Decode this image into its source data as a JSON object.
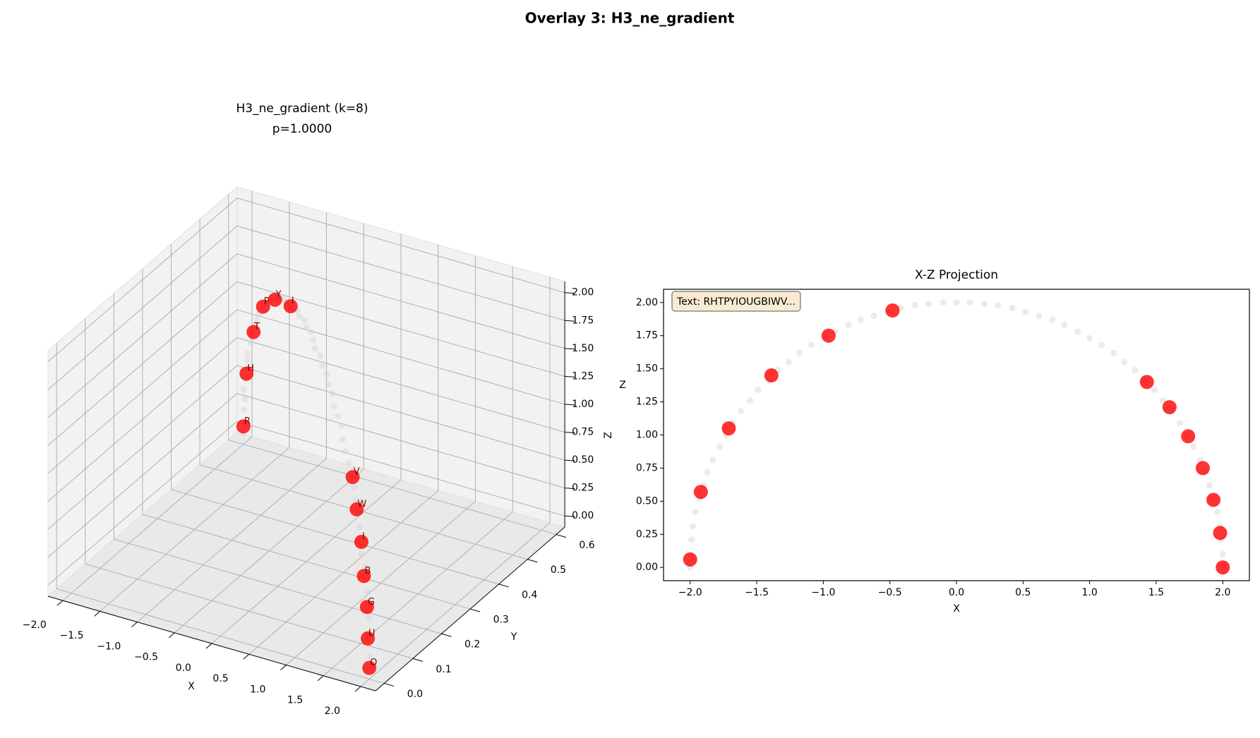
{
  "title": "Overlay 3: H3_ne_gradient",
  "chart_data": [
    {
      "type": "scatter3d",
      "title": [
        "H3_ne_gradient (k=8)",
        "p=1.0000"
      ],
      "xlabel": "X",
      "ylabel": "Y",
      "zlabel": "Z",
      "xlim": [
        -2.2,
        2.2
      ],
      "ylim": [
        -0.03,
        0.63
      ],
      "zlim": [
        -0.1,
        2.1
      ],
      "xticks": [
        {
          "value": -2,
          "label": "−2.0"
        },
        {
          "value": -1.5,
          "label": "−1.5"
        },
        {
          "value": -1,
          "label": "−1.0"
        },
        {
          "value": -0.5,
          "label": "−0.5"
        },
        {
          "value": 0,
          "label": "0.0"
        },
        0.5,
        {
          "value": 1,
          "label": "1.0"
        },
        1.5,
        {
          "value": 2,
          "label": "2.0"
        }
      ],
      "yticks": [
        {
          "value": 0,
          "label": "0.0"
        },
        0.1,
        0.2,
        0.3,
        0.4,
        0.5,
        0.6
      ],
      "zticks": [
        {
          "value": 0,
          "label": "0.00"
        },
        0.25,
        {
          "value": 0.5,
          "label": "0.50"
        },
        0.75,
        {
          "value": 1,
          "label": "1.00"
        },
        1.25,
        {
          "value": 1.5,
          "label": "1.50"
        },
        1.75,
        {
          "value": 2,
          "label": "2.00"
        }
      ],
      "grid": true,
      "series": [
        {
          "color": "#d3d3d3",
          "x": [
            2,
            2,
            1.99,
            1.98,
            1.96,
            1.93,
            1.9,
            1.87,
            1.83,
            1.78,
            1.73,
            1.68,
            1.62,
            1.55,
            1.49,
            1.41,
            1.34,
            1.26,
            1.18,
            1.09,
            1,
            0.91,
            0.81,
            0.72,
            0.62,
            0.52,
            0.42,
            0.31,
            0.21,
            0.1,
            0,
            -0.1,
            -0.21,
            -0.31,
            -0.42,
            -0.52,
            -0.62,
            -0.72,
            -0.81,
            -0.91,
            -1,
            -1.09,
            -1.18,
            -1.26,
            -1.34,
            -1.41,
            -1.49,
            -1.55,
            -1.62,
            -1.68,
            -1.73,
            -1.78,
            -1.83,
            -1.87,
            -1.9,
            -1.93,
            -1.96,
            -1.98,
            -1.99,
            -2,
            -2
          ],
          "y": [
            0,
            0,
            0,
            0,
            0.01,
            0.01,
            0.02,
            0.02,
            0.03,
            0.03,
            0.04,
            0.05,
            0.06,
            0.07,
            0.08,
            0.09,
            0.1,
            0.11,
            0.12,
            0.14,
            0.15,
            0.16,
            0.18,
            0.19,
            0.21,
            0.22,
            0.24,
            0.25,
            0.27,
            0.29,
            0.3,
            0.32,
            0.33,
            0.35,
            0.36,
            0.38,
            0.39,
            0.41,
            0.42,
            0.44,
            0.45,
            0.46,
            0.48,
            0.49,
            0.5,
            0.51,
            0.52,
            0.53,
            0.54,
            0.55,
            0.56,
            0.57,
            0.57,
            0.58,
            0.59,
            0.59,
            0.59,
            0.6,
            0.6,
            0.6,
            0.6
          ],
          "z": [
            0,
            0.1,
            0.21,
            0.31,
            0.42,
            0.52,
            0.62,
            0.72,
            0.81,
            0.91,
            1,
            1.09,
            1.18,
            1.26,
            1.34,
            1.41,
            1.49,
            1.55,
            1.62,
            1.68,
            1.73,
            1.78,
            1.83,
            1.87,
            1.9,
            1.93,
            1.96,
            1.98,
            1.99,
            2,
            2,
            2,
            1.99,
            1.98,
            1.96,
            1.93,
            1.9,
            1.87,
            1.83,
            1.78,
            1.73,
            1.68,
            1.62,
            1.55,
            1.49,
            1.41,
            1.34,
            1.26,
            1.18,
            1.09,
            1,
            0.91,
            0.81,
            0.72,
            0.62,
            0.52,
            0.42,
            0.31,
            0.21,
            0.1,
            0
          ]
        },
        {
          "color": "#ff0000",
          "labels": [
            "R",
            "H",
            "T",
            "P",
            "Y",
            "I",
            "O",
            "U",
            "G",
            "B",
            "I",
            "W",
            "V"
          ],
          "x": [
            -2,
            -1.92,
            -1.71,
            -1.39,
            -0.96,
            -0.48,
            2,
            1.98,
            1.93,
            1.85,
            1.74,
            1.6,
            1.43
          ],
          "y": [
            0.6,
            0.59,
            0.56,
            0.51,
            0.44,
            0.37,
            0,
            0,
            0.01,
            0.02,
            0.04,
            0.06,
            0.09
          ],
          "z": [
            0.06,
            0.57,
            1.05,
            1.45,
            1.75,
            1.94,
            0,
            0.26,
            0.51,
            0.75,
            0.99,
            1.21,
            1.4
          ]
        }
      ]
    },
    {
      "type": "scatter",
      "title": "X-Z Projection",
      "xlabel": "X",
      "ylabel": "Z",
      "annotation": "Text: RHTPYIOUGBIWV...",
      "xlim": [
        -2.2,
        2.2
      ],
      "ylim": [
        -0.1,
        2.1
      ],
      "xticks": [
        {
          "value": -2,
          "label": "−2.0"
        },
        {
          "value": -1.5,
          "label": "−1.5"
        },
        {
          "value": -1,
          "label": "−1.0"
        },
        {
          "value": -0.5,
          "label": "−0.5"
        },
        {
          "value": 0,
          "label": "0.0"
        },
        0.5,
        {
          "value": 1,
          "label": "1.0"
        },
        1.5,
        {
          "value": 2,
          "label": "2.0"
        }
      ],
      "yticks": [
        {
          "value": 0,
          "label": "0.00"
        },
        0.25,
        {
          "value": 0.5,
          "label": "0.50"
        },
        0.75,
        {
          "value": 1,
          "label": "1.00"
        },
        1.25,
        {
          "value": 1.5,
          "label": "1.50"
        },
        1.75,
        {
          "value": 2,
          "label": "2.00"
        }
      ],
      "series": [
        {
          "color": "#d3d3d3",
          "x": [
            2,
            2,
            1.99,
            1.98,
            1.96,
            1.93,
            1.9,
            1.87,
            1.83,
            1.78,
            1.73,
            1.68,
            1.62,
            1.55,
            1.49,
            1.41,
            1.34,
            1.26,
            1.18,
            1.09,
            1,
            0.91,
            0.81,
            0.72,
            0.62,
            0.52,
            0.42,
            0.31,
            0.21,
            0.1,
            0,
            -0.1,
            -0.21,
            -0.31,
            -0.42,
            -0.52,
            -0.62,
            -0.72,
            -0.81,
            -0.91,
            -1,
            -1.09,
            -1.18,
            -1.26,
            -1.34,
            -1.41,
            -1.49,
            -1.55,
            -1.62,
            -1.68,
            -1.73,
            -1.78,
            -1.83,
            -1.87,
            -1.9,
            -1.93,
            -1.96,
            -1.98,
            -1.99,
            -2,
            -2
          ],
          "values": [
            0,
            0.1,
            0.21,
            0.31,
            0.42,
            0.52,
            0.62,
            0.72,
            0.81,
            0.91,
            1,
            1.09,
            1.18,
            1.26,
            1.34,
            1.41,
            1.49,
            1.55,
            1.62,
            1.68,
            1.73,
            1.78,
            1.83,
            1.87,
            1.9,
            1.93,
            1.96,
            1.98,
            1.99,
            2,
            2,
            2,
            1.99,
            1.98,
            1.96,
            1.93,
            1.9,
            1.87,
            1.83,
            1.78,
            1.73,
            1.68,
            1.62,
            1.55,
            1.49,
            1.41,
            1.34,
            1.26,
            1.18,
            1.09,
            1,
            0.91,
            0.81,
            0.72,
            0.62,
            0.52,
            0.42,
            0.31,
            0.21,
            0.1,
            0
          ]
        },
        {
          "color": "#ff0000",
          "x": [
            -2,
            -1.92,
            -1.71,
            -1.39,
            -0.96,
            -0.48,
            2,
            1.98,
            1.93,
            1.85,
            1.74,
            1.6,
            1.43
          ],
          "values": [
            0.06,
            0.57,
            1.05,
            1.45,
            1.75,
            1.94,
            0,
            0.26,
            0.51,
            0.75,
            0.99,
            1.21,
            1.4
          ]
        }
      ]
    }
  ]
}
